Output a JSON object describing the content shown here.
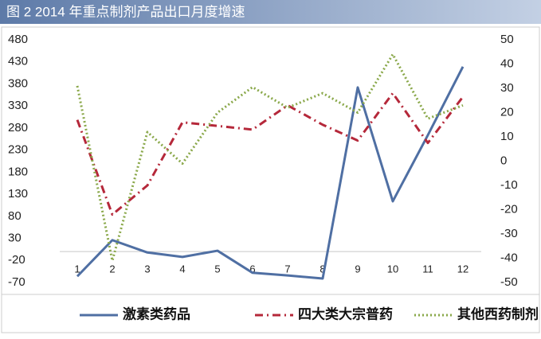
{
  "chart_data": {
    "type": "line",
    "title": "图 2  2014 年重点制剂产品出口月度增速",
    "categories": [
      "1",
      "2",
      "3",
      "4",
      "5",
      "6",
      "7",
      "8",
      "9",
      "10",
      "11",
      "12"
    ],
    "ylim": [
      -70,
      480
    ],
    "yticks": [
      480,
      430,
      380,
      330,
      280,
      230,
      180,
      130,
      80,
      30,
      -20,
      -70
    ],
    "y2lim": [
      -50,
      50
    ],
    "y2ticks": [
      50,
      40,
      30,
      20,
      10,
      0,
      -10,
      -20,
      -30,
      -40,
      -50
    ],
    "series": [
      {
        "name": "激素类药品",
        "color": "#4f6fa3",
        "dash": "solid",
        "values": [
          -56,
          26,
          -2,
          -12,
          2,
          -48,
          -54,
          -61,
          372,
          114,
          264,
          419
        ]
      },
      {
        "name": "四大类大宗普药",
        "color": "#b5283a",
        "dash": "dashdot",
        "axis": "y2",
        "values": [
          17,
          -22,
          -10,
          16,
          14.5,
          13,
          23,
          15,
          8.5,
          28,
          7.5,
          26.5
        ]
      },
      {
        "name": "其他西药制剂",
        "color": "#8aa84a",
        "dash": "dotted",
        "axis": "y2",
        "values": [
          31,
          -41,
          12,
          -1,
          20,
          30.5,
          22,
          28,
          20,
          44,
          17.5,
          23
        ]
      }
    ]
  }
}
